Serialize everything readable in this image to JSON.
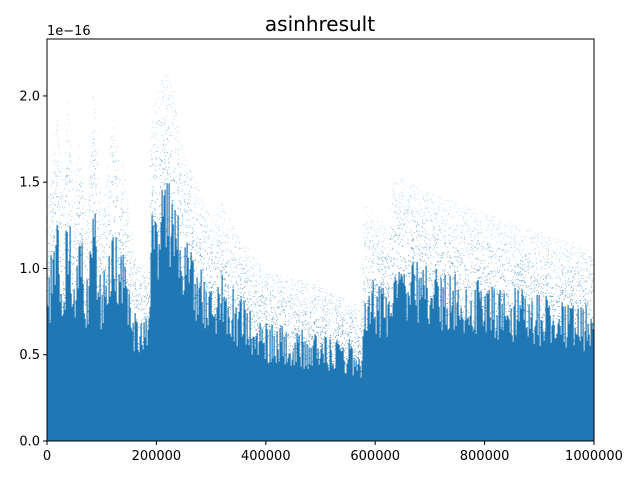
{
  "chart_data": {
    "type": "scatter",
    "title": "asinhresult",
    "xlabel": "",
    "ylabel": "",
    "xlim": [
      0,
      1000000
    ],
    "ylim": [
      0,
      2.33e-16
    ],
    "y_offset_label": "1e−16",
    "x_ticks": [
      {
        "value": 0,
        "label": "0"
      },
      {
        "value": 200000,
        "label": "200000"
      },
      {
        "value": 400000,
        "label": "400000"
      },
      {
        "value": 600000,
        "label": "600000"
      },
      {
        "value": 800000,
        "label": "800000"
      },
      {
        "value": 1000000,
        "label": "1000000"
      }
    ],
    "y_ticks": [
      {
        "value": 0.0,
        "label": "0.0"
      },
      {
        "value": 5e-17,
        "label": "0.5"
      },
      {
        "value": 1e-16,
        "label": "1.0"
      },
      {
        "value": 1.5e-16,
        "label": "1.5"
      },
      {
        "value": 2e-16,
        "label": "2.0"
      }
    ],
    "grid": false,
    "marker_color": "#1f77b4",
    "series": [
      {
        "upper_envelope": [
          [
            0,
            1.3e-16
          ],
          [
            10000,
            1.7e-16
          ],
          [
            20000,
            1.9e-16
          ],
          [
            30000,
            1.5e-16
          ],
          [
            40000,
            2.1e-16
          ],
          [
            50000,
            1.4e-16
          ],
          [
            60000,
            1.8e-16
          ],
          [
            75000,
            1.3e-16
          ],
          [
            85000,
            2.2e-16
          ],
          [
            100000,
            1.3e-16
          ],
          [
            120000,
            1.9e-16
          ],
          [
            140000,
            1.6e-16
          ],
          [
            160000,
            1.1e-16
          ],
          [
            185000,
            1e-16
          ],
          [
            190000,
            1.9e-16
          ],
          [
            220000,
            2.2e-16
          ],
          [
            250000,
            1.7e-16
          ],
          [
            300000,
            1.3e-16
          ],
          [
            320000,
            1.4e-16
          ],
          [
            350000,
            1.2e-16
          ],
          [
            400000,
            1e-16
          ],
          [
            450000,
            9.5e-17
          ],
          [
            500000,
            9e-17
          ],
          [
            550000,
            8.2e-17
          ],
          [
            575000,
            7.8e-17
          ],
          [
            580000,
            1.38e-16
          ],
          [
            600000,
            1.32e-16
          ],
          [
            625000,
            1.25e-16
          ],
          [
            630000,
            1.55e-16
          ],
          [
            700000,
            1.45e-16
          ],
          [
            800000,
            1.33e-16
          ],
          [
            900000,
            1.22e-16
          ],
          [
            1000000,
            1.12e-16
          ]
        ]
      }
    ]
  }
}
